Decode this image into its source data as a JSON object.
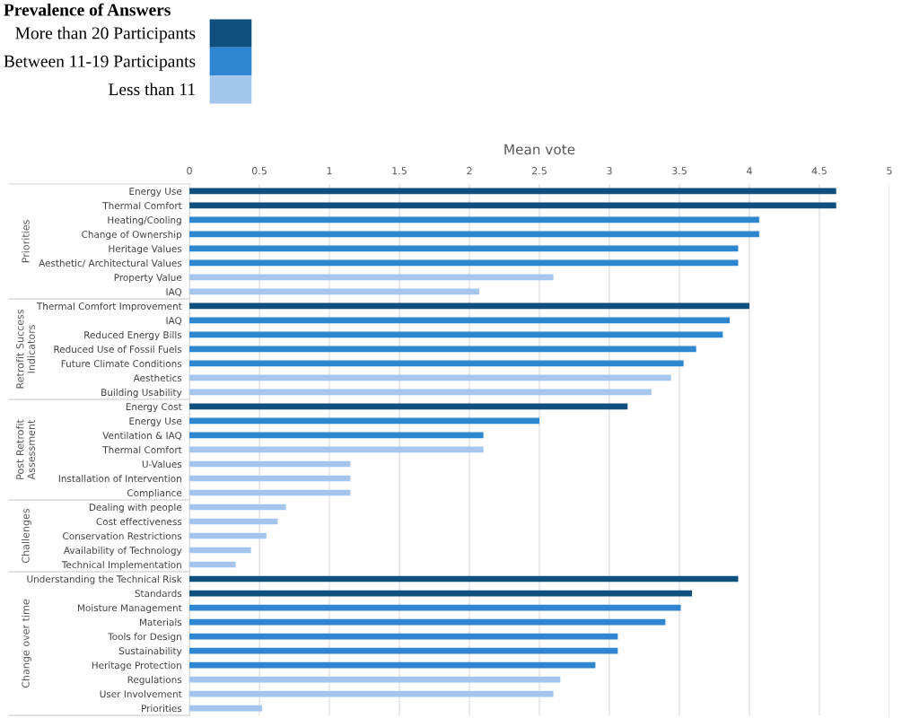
{
  "chart_data": {
    "type": "bar",
    "orientation": "horizontal",
    "xlabel": "Mean vote",
    "legend_title": "Prevalence of Answers",
    "legend": "top left",
    "grid": "x",
    "categories": [
      "Energy Use",
      "Thermal Comfort",
      "Heating/Cooling",
      "Change of Ownership",
      "Heritage Values",
      "Aesthetic/ Architectural Values",
      "Property Value",
      "IAQ",
      "Thermal Comfort Improvement",
      "IAQ",
      "Reduced Energy Bills",
      "Reduced Use of Fossil Fuels",
      "Future Climate Conditions",
      "Aesthetics",
      "Building Usability",
      "Energy Cost",
      "Energy Use",
      "Ventilation & IAQ",
      "Thermal Comfort",
      "U-Values",
      "Installation of Intervention",
      "Compliance",
      "Dealing with people",
      "Cost effectiveness",
      "Conservation Restrictions",
      "Availability of Technology",
      "Technical Implementation",
      "Understanding the Technical Risk",
      "Standards",
      "Moisture Management",
      "Materials",
      "Tools for Design",
      "Sustainability",
      "Heritage Protection",
      "Regulations",
      "User Involvement",
      "Priorities"
    ],
    "series": [
      {
        "name": "More than 20 Participants",
        "color": "#0e4f7e",
        "values": [
          4.62,
          4.62,
          null,
          null,
          null,
          null,
          null,
          null,
          4.0,
          null,
          null,
          null,
          null,
          null,
          null,
          3.13,
          null,
          null,
          null,
          null,
          null,
          null,
          null,
          null,
          null,
          null,
          null,
          3.92,
          3.59,
          null,
          null,
          null,
          null,
          null,
          null,
          null,
          null
        ]
      },
      {
        "name": "Between 11-19 Participants",
        "color": "#2e86d1",
        "values": [
          null,
          null,
          4.07,
          4.07,
          3.92,
          3.92,
          null,
          null,
          null,
          3.86,
          3.81,
          3.62,
          3.53,
          null,
          null,
          null,
          2.5,
          2.1,
          null,
          null,
          null,
          null,
          null,
          null,
          null,
          null,
          null,
          null,
          null,
          3.51,
          3.4,
          3.06,
          3.06,
          2.9,
          null,
          null,
          null
        ]
      },
      {
        "name": "Less than 11",
        "color": "#a3c6ea",
        "values": [
          null,
          null,
          null,
          null,
          null,
          null,
          2.6,
          2.07,
          null,
          null,
          null,
          null,
          null,
          3.44,
          3.3,
          null,
          null,
          null,
          2.1,
          1.15,
          1.15,
          1.15,
          0.69,
          0.63,
          0.55,
          0.44,
          0.33,
          null,
          null,
          null,
          null,
          null,
          null,
          null,
          2.65,
          2.6,
          0.52
        ]
      }
    ],
    "xlim": [
      0,
      5
    ],
    "xticks": [
      0,
      0.5,
      1,
      1.5,
      2,
      2.5,
      3,
      3.5,
      4,
      4.5,
      5
    ],
    "annotations": [
      "Priorities",
      "Retrofit Success\nIndicators",
      "Post Retrofit\nAssessment",
      "Challenges",
      "Change over time"
    ]
  }
}
